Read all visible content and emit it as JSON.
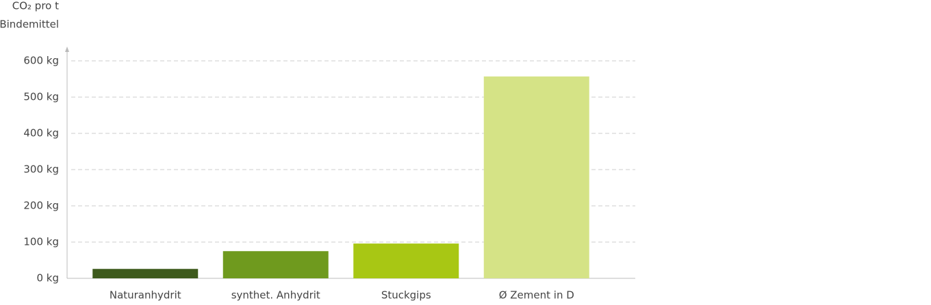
{
  "chart_data": {
    "type": "bar",
    "y_label": [
      "CO₂ pro t",
      "Bindemittel"
    ],
    "categories": [
      "Naturanhydrit",
      "synthet. Anhydrit",
      "Stuckgips",
      "Ø Zement in D"
    ],
    "values": [
      26,
      75,
      96,
      557
    ],
    "colors": [
      "#3d5a1c",
      "#6f9a1e",
      "#a8c714",
      "#d5e386"
    ],
    "ylim": [
      0,
      600
    ],
    "yticks": [
      {
        "value": 0,
        "label": "0 kg"
      },
      {
        "value": 100,
        "label": "100 kg"
      },
      {
        "value": 200,
        "label": "200 kg"
      },
      {
        "value": 300,
        "label": "300 kg"
      },
      {
        "value": 400,
        "label": "400 kg"
      },
      {
        "value": 500,
        "label": "500 kg"
      },
      {
        "value": 600,
        "label": "600 kg"
      }
    ],
    "grid": true
  }
}
